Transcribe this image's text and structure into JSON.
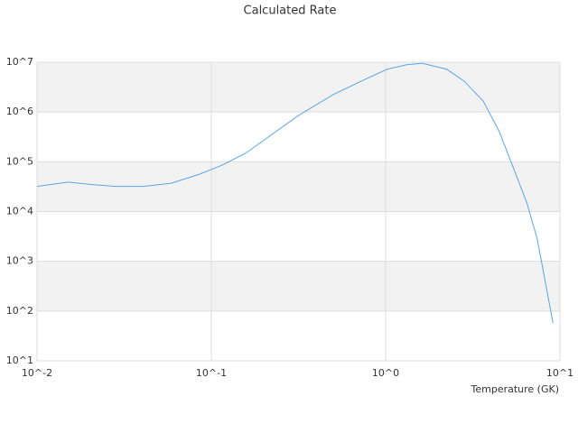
{
  "chart_data": {
    "type": "line",
    "title": "Calculated Rate",
    "xlabel": "Temperature (GK)",
    "xscale": "log",
    "yscale": "log",
    "grid": true,
    "bands": true,
    "band_color": "#f2f2f2",
    "xlim": [
      0.01,
      10
    ],
    "ylim": [
      10,
      10000000
    ],
    "xticks": [
      {
        "value": 0.01,
        "label": "10^-2"
      },
      {
        "value": 0.1,
        "label": "10^-1"
      },
      {
        "value": 1,
        "label": "10^0"
      },
      {
        "value": 10,
        "label": "10^1"
      }
    ],
    "yticks": [
      {
        "value": 10,
        "label": "10^1"
      },
      {
        "value": 100,
        "label": "10^2"
      },
      {
        "value": 1000,
        "label": "10^3"
      },
      {
        "value": 10000,
        "label": "10^4"
      },
      {
        "value": 100000,
        "label": "10^5"
      },
      {
        "value": 1000000,
        "label": "10^6"
      },
      {
        "value": 10000000,
        "label": "10^7"
      }
    ],
    "x": [
      0.01,
      0.0151,
      0.0204,
      0.0282,
      0.0407,
      0.0589,
      0.0851,
      0.115,
      0.158,
      0.219,
      0.316,
      0.501,
      0.724,
      1.02,
      1.32,
      1.62,
      2.24,
      2.82,
      3.63,
      4.47,
      5.25,
      6.46,
      7.41,
      9.12
    ],
    "series": [
      {
        "color": "#5aa5e6",
        "values": [
          32000,
          39000,
          35000,
          32000,
          32000,
          37000,
          56000,
          85000,
          150000,
          340000,
          850000,
          2240000,
          4170000,
          7240000,
          8910000,
          9550000,
          7240000,
          4170000,
          1660000,
          417000,
          98000,
          15000,
          2800,
          58
        ]
      }
    ]
  }
}
